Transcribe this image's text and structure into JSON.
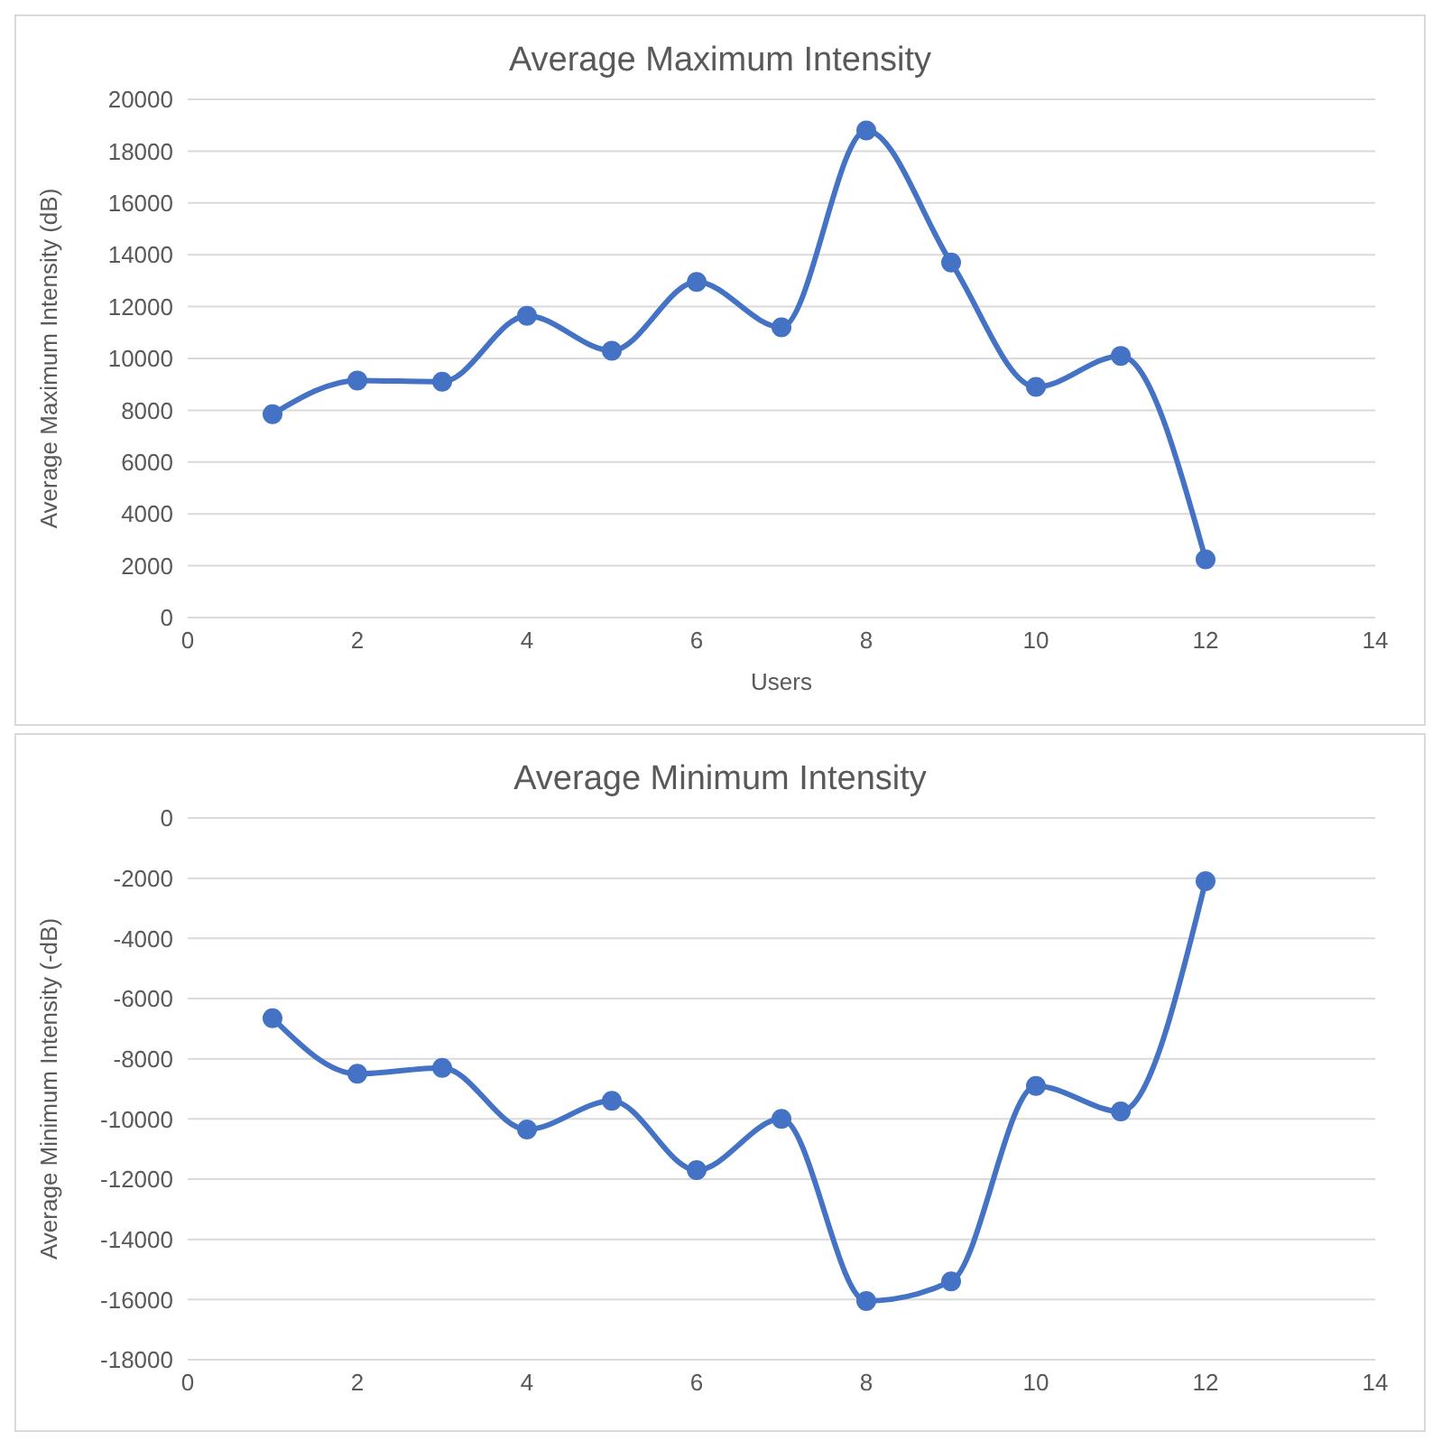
{
  "chart_data": [
    {
      "type": "line",
      "title": "Average Maximum Intensity",
      "xlabel": "Users",
      "ylabel": "Average Maximum Intensity (dB)",
      "x": [
        1,
        2,
        3,
        4,
        5,
        6,
        7,
        8,
        9,
        10,
        11,
        12
      ],
      "series": [
        {
          "color": "#4472c4",
          "values": [
            7850,
            9150,
            9100,
            11650,
            10300,
            12950,
            11200,
            18800,
            13700,
            8900,
            10100,
            2250
          ]
        }
      ],
      "xlim": [
        0,
        14
      ],
      "xticks": [
        0,
        2,
        4,
        6,
        8,
        10,
        12,
        14
      ],
      "ylim": [
        0,
        20000
      ],
      "yticks": [
        0,
        2000,
        4000,
        6000,
        8000,
        10000,
        12000,
        14000,
        16000,
        18000,
        20000
      ],
      "grid": "y",
      "marker": "circle",
      "line_style": "solid"
    },
    {
      "type": "line",
      "title": "Average Minimum Intensity",
      "ylabel": "Average Minimum Intensity (-dB)",
      "x": [
        1,
        2,
        3,
        4,
        5,
        6,
        7,
        8,
        9,
        10,
        11,
        12
      ],
      "series": [
        {
          "color": "#4472c4",
          "values": [
            -6650,
            -8500,
            -8300,
            -10350,
            -9400,
            -11700,
            -10000,
            -16050,
            -15400,
            -8900,
            -9750,
            -2100
          ]
        }
      ],
      "xlim": [
        0,
        14
      ],
      "xticks": [
        0,
        2,
        4,
        6,
        8,
        10,
        12,
        14
      ],
      "ylim": [
        -18000,
        0
      ],
      "yticks": [
        -18000,
        -16000,
        -14000,
        -12000,
        -10000,
        -8000,
        -6000,
        -4000,
        -2000,
        0
      ],
      "grid": "y",
      "marker": "circle",
      "line_style": "solid"
    }
  ]
}
